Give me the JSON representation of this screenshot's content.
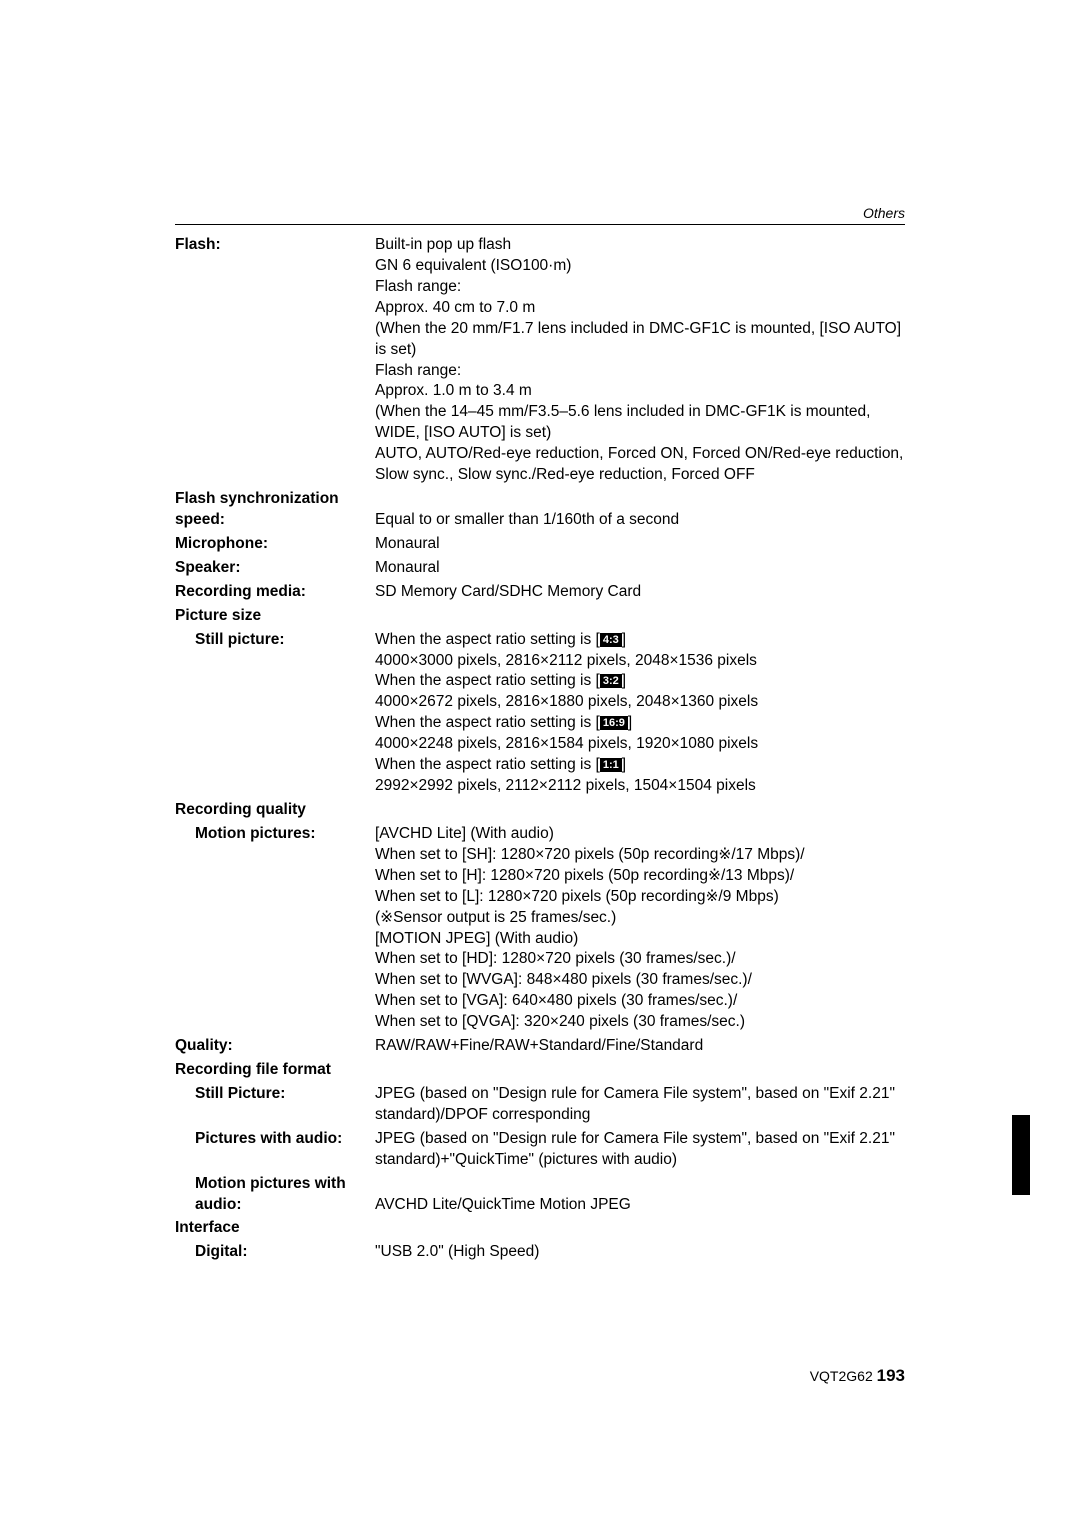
{
  "section_header": "Others",
  "specs": {
    "flash": {
      "label": "Flash:",
      "lines": [
        "Built-in pop up flash",
        "GN 6 equivalent (ISO100·m)",
        "Flash range:",
        "Approx. 40 cm to 7.0 m",
        "(When the 20 mm/F1.7 lens included in DMC-GF1C is mounted, [ISO AUTO] is set)",
        "Flash range:",
        "Approx. 1.0 m to 3.4 m",
        "(When the 14–45 mm/F3.5–5.6 lens included in DMC-GF1K is mounted, WIDE, [ISO AUTO] is set)",
        "AUTO, AUTO/Red-eye reduction, Forced ON, Forced ON/Red-eye reduction, Slow sync., Slow sync./Red-eye reduction, Forced OFF"
      ]
    },
    "flash_sync": {
      "label": "Flash synchronization speed:",
      "value": "Equal to or smaller than 1/160th of a second"
    },
    "microphone": {
      "label": "Microphone:",
      "value": "Monaural"
    },
    "speaker": {
      "label": "Speaker:",
      "value": "Monaural"
    },
    "recording_media": {
      "label": "Recording media:",
      "value": "SD Memory Card/SDHC Memory Card"
    },
    "picture_size": {
      "group_label": "Picture size",
      "still": {
        "label": "Still picture:",
        "ratio_prefix": "When the aspect ratio setting is [",
        "ratio_suffix": "]",
        "ratios": [
          {
            "icon": "4:3",
            "text": "4000×3000 pixels, 2816×2112 pixels, 2048×1536 pixels"
          },
          {
            "icon": "3:2",
            "text": "4000×2672 pixels, 2816×1880 pixels, 2048×1360 pixels"
          },
          {
            "icon": "16:9",
            "text": "4000×2248 pixels, 2816×1584 pixels, 1920×1080 pixels"
          },
          {
            "icon": "1:1",
            "text": "2992×2992 pixels, 2112×2112 pixels, 1504×1504 pixels"
          }
        ]
      }
    },
    "recording_quality": {
      "group_label": "Recording quality",
      "motion": {
        "label": "Motion pictures:",
        "lines": [
          "[AVCHD Lite] (With audio)",
          "When set to [SH]: 1280×720 pixels (50p recording※/17 Mbps)/",
          "When set to [H]: 1280×720 pixels (50p recording※/13 Mbps)/",
          "When set to [L]: 1280×720 pixels (50p recording※/9 Mbps)",
          "(※Sensor output is 25 frames/sec.)",
          "[MOTION JPEG] (With audio)",
          "When set to [HD]: 1280×720 pixels (30 frames/sec.)/",
          "When set to [WVGA]: 848×480 pixels (30 frames/sec.)/",
          "When set to [VGA]: 640×480 pixels (30 frames/sec.)/",
          "When set to [QVGA]: 320×240 pixels (30 frames/sec.)"
        ]
      }
    },
    "quality": {
      "label": "Quality:",
      "value": "RAW/RAW+Fine/RAW+Standard/Fine/Standard"
    },
    "recording_file_format": {
      "group_label": "Recording file format",
      "still_picture": {
        "label": "Still Picture:",
        "value": "JPEG (based on \"Design rule for Camera File system\", based on \"Exif 2.21\" standard)/DPOF corresponding"
      },
      "pictures_audio": {
        "label": "Pictures with audio:",
        "value": "JPEG (based on \"Design rule for Camera File system\", based on \"Exif 2.21\" standard)+\"QuickTime\" (pictures with audio)"
      },
      "motion_audio": {
        "label": "Motion pictures with audio:",
        "value": "AVCHD Lite/QuickTime Motion JPEG"
      }
    },
    "interface": {
      "group_label": "Interface",
      "digital": {
        "label": "Digital:",
        "value": "\"USB 2.0\" (High Speed)"
      }
    }
  },
  "footer": {
    "code": "VQT2G62",
    "page": "193"
  }
}
